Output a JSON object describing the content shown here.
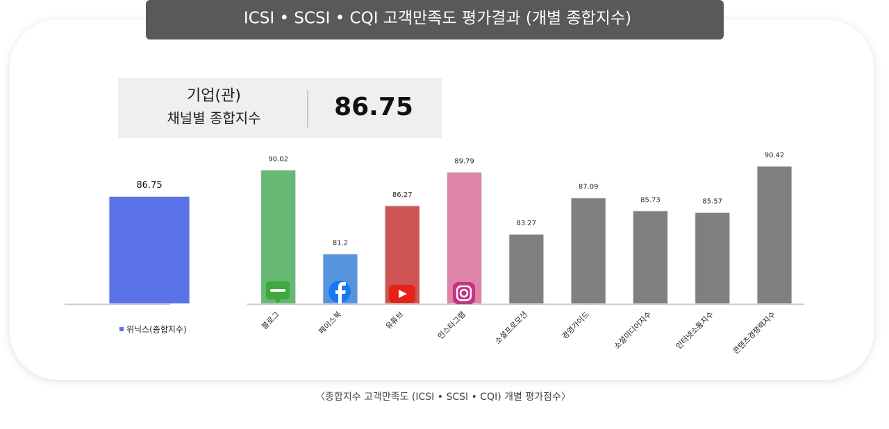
{
  "header": {
    "title": "ICSI • SCSI  • CQI 고객만족도 평가결과 (개별 종합지수)"
  },
  "summary": {
    "label_lines": [
      "기업(관)",
      "채널별 종합지수"
    ],
    "value": "86.75"
  },
  "chart_data": [
    {
      "type": "bar",
      "series": [
        {
          "name": "위닉스(종합지수)",
          "color": "#5b73e8",
          "values": [
            86.75
          ]
        }
      ],
      "ylim": [
        74,
        91
      ],
      "legend": "bottom"
    },
    {
      "type": "bar",
      "categories": [
        "블로그",
        "페이스북",
        "유튜브",
        "인스타그램",
        "소셜프로모션",
        "경영가이드",
        "소셜미디어지수",
        "인터넷소통지수",
        "콘텐츠경쟁력지수"
      ],
      "values": [
        90.02,
        81.2,
        86.27,
        89.79,
        83.27,
        87.09,
        85.73,
        85.57,
        90.42
      ],
      "colors": [
        "#67b874",
        "#5893de",
        "#cd5453",
        "#e083a8",
        "#7f7f7f",
        "#7f7f7f",
        "#7f7f7f",
        "#7f7f7f",
        "#7f7f7f"
      ],
      "ylim": [
        76,
        91
      ]
    }
  ],
  "caption": "〈종합지수 고객만족도 (ICSI • SCSI • CQI) 개별 평가점수〉"
}
